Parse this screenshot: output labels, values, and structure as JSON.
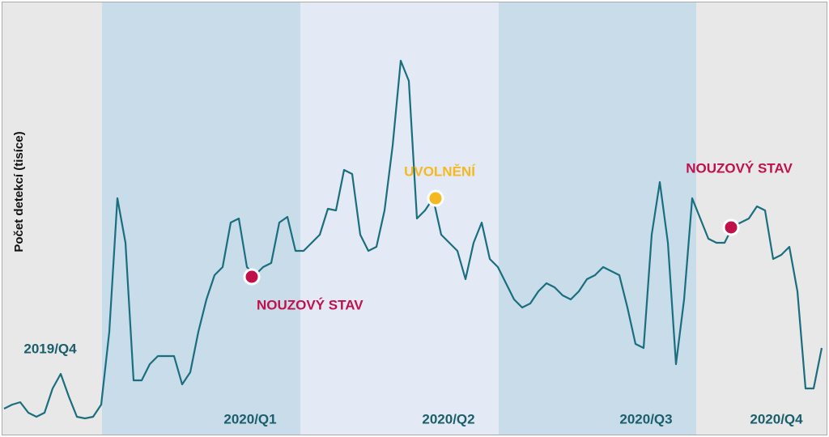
{
  "chart_data": {
    "type": "line",
    "y_label": "Počet detekcí (tisíce)",
    "xlim": [
      0,
      101
    ],
    "ylim": [
      0,
      100
    ],
    "series": [
      {
        "name": "Počet detekcí",
        "color": "#1a6e7e",
        "values": [
          5,
          6,
          6.6,
          4,
          3,
          4,
          10,
          13.6,
          8,
          3,
          2.6,
          3,
          6,
          24,
          57,
          46,
          12,
          12,
          16,
          18,
          18,
          18,
          11,
          14,
          24,
          32,
          38,
          40,
          51,
          52,
          40,
          38,
          40,
          41,
          51,
          52.4,
          44,
          44,
          46,
          48,
          54.4,
          54,
          64,
          63,
          48,
          44,
          45,
          54,
          70,
          91,
          86,
          52,
          54,
          57,
          48,
          46,
          44,
          37,
          46,
          51,
          42,
          40,
          36,
          32,
          30,
          31,
          34,
          36,
          35,
          33,
          32,
          34,
          37,
          38,
          40,
          39,
          38,
          30,
          21,
          20,
          48,
          61,
          46,
          16,
          32,
          57,
          52,
          47,
          46,
          46,
          50,
          51,
          52,
          55,
          54,
          42,
          43,
          45,
          34,
          10,
          10,
          20
        ]
      }
    ],
    "periods": [
      {
        "label": "2019/Q4",
        "start": 0,
        "end": 12.1,
        "color": "#e8e8e8"
      },
      {
        "label": "2020/Q1",
        "start": 12.1,
        "end": 36.6,
        "color": "#c9dcea"
      },
      {
        "label": "2020/Q2",
        "start": 36.6,
        "end": 61.1,
        "color": "#e3eaf5"
      },
      {
        "label": "2020/Q3",
        "start": 61.1,
        "end": 85.5,
        "color": "#c9dcea"
      },
      {
        "label": "2020/Q4",
        "start": 85.5,
        "end": 101.3,
        "color": "#e8e8e8"
      }
    ],
    "annotations": [
      {
        "label": "NOUZOVÝ STAV",
        "x": 30.6,
        "y": 37.6,
        "color": "#c0114b",
        "label_position": "below"
      },
      {
        "label": "UVOLNĚNÍ",
        "x": 53.3,
        "y": 57,
        "color": "#f5b820",
        "label_position": "above"
      },
      {
        "label": "NOUZOVÝ STAV",
        "x": 89.8,
        "y": 49.8,
        "color": "#c0114b",
        "label_position": "above-left"
      }
    ]
  }
}
